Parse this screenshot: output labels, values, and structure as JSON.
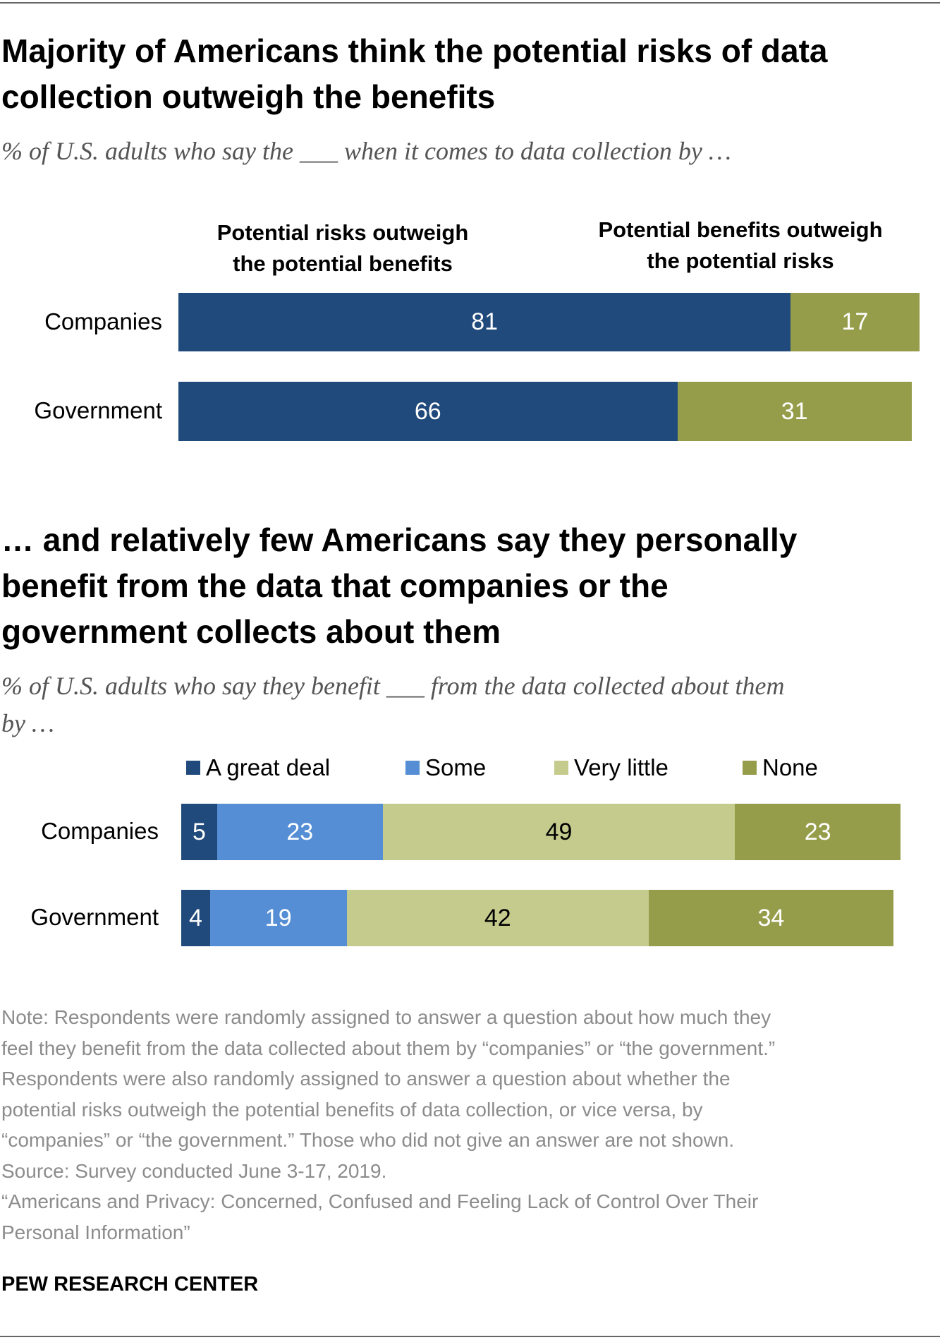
{
  "colors": {
    "risks": "#204a7b",
    "benefits": "#969d4a",
    "great_deal": "#204a7b",
    "some": "#558ed5",
    "very_little": "#c4cb8c",
    "none": "#969d4a"
  },
  "section1": {
    "title_lines": [
      "Majority of Americans think the potential risks of data",
      "collection outweigh the benefits"
    ],
    "subtitle": "% of U.S. adults who say the ___ when it comes to data collection by …",
    "header_risks": [
      "Potential risks outweigh",
      "the potential benefits"
    ],
    "header_benefits": [
      "Potential benefits outweigh",
      "the potential risks"
    ]
  },
  "section2": {
    "title_lines": [
      "… and relatively few Americans say they personally",
      "benefit from the data that companies or the",
      "government collects about them"
    ],
    "subtitle_lines": [
      "% of U.S. adults who say they benefit ___ from the data collected about them",
      "by …"
    ]
  },
  "chart_data": [
    {
      "type": "bar",
      "orientation": "horizontal",
      "stacked": true,
      "categories": [
        "Companies",
        "Government"
      ],
      "series": [
        {
          "name": "Potential risks outweigh the potential benefits",
          "values": [
            81,
            66
          ]
        },
        {
          "name": "Potential benefits outweigh the potential risks",
          "values": [
            17,
            31
          ]
        }
      ],
      "xlim": [
        0,
        100
      ],
      "grid": false,
      "data_labels": true
    },
    {
      "type": "bar",
      "orientation": "horizontal",
      "stacked": true,
      "categories": [
        "Companies",
        "Government"
      ],
      "series": [
        {
          "name": "A great deal",
          "values": [
            5,
            4
          ]
        },
        {
          "name": "Some",
          "values": [
            23,
            19
          ]
        },
        {
          "name": "Very little",
          "values": [
            49,
            42
          ]
        },
        {
          "name": "None",
          "values": [
            23,
            34
          ]
        }
      ],
      "xlim": [
        0,
        100
      ],
      "grid": false,
      "legend": "top",
      "data_labels": true
    }
  ],
  "note_lines": [
    "Note: Respondents were randomly assigned to answer a question about how much they",
    "feel they benefit from the data collected about them by “companies” or “the government.”",
    "Respondents were also randomly assigned to answer a question about whether the",
    "potential risks outweigh the potential benefits of data collection, or vice versa, by",
    "“companies” or “the government.” Those who did not give an answer are not shown.",
    "Source: Survey conducted June 3-17, 2019.",
    "“Americans and Privacy: Concerned, Confused and Feeling Lack of Control Over Their",
    "Personal Information”"
  ],
  "footer": {
    "logo": "PEW RESEARCH CENTER"
  }
}
